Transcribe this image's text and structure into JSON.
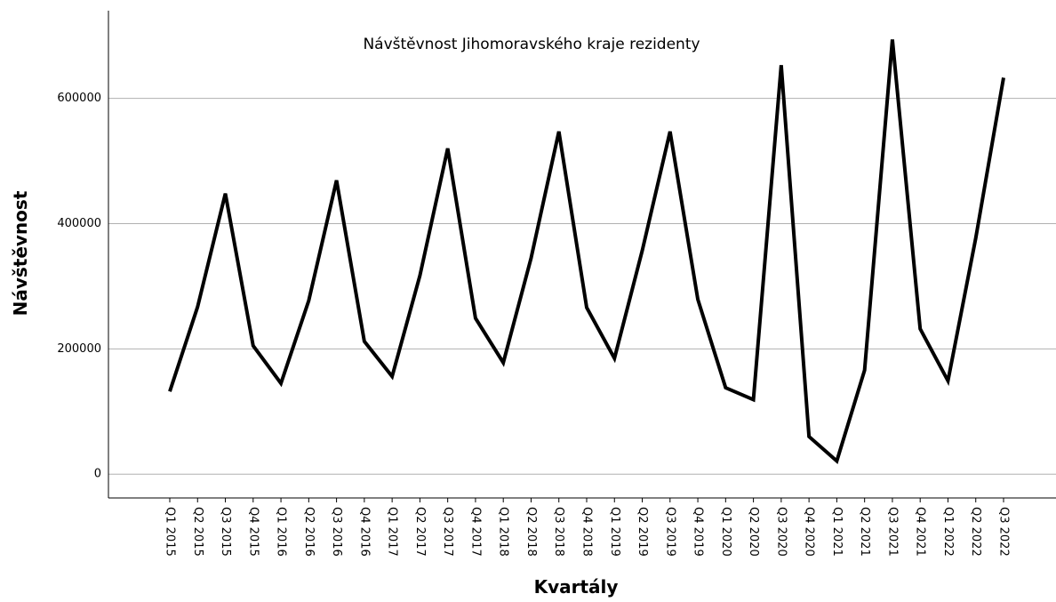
{
  "chart_data": {
    "type": "line",
    "title": "Návštěvnost Jihomoravského kraje rezidenty",
    "xlabel": "Kvartály",
    "ylabel": "Návštěvnost",
    "categories": [
      "Q1 2015",
      "Q2 2015",
      "Q3 2015",
      "Q4 2015",
      "Q1 2016",
      "Q2 2016",
      "Q3 2016",
      "Q4 2016",
      "Q1 2017",
      "Q2 2017",
      "Q3 2017",
      "Q4 2017",
      "Q1 2018",
      "Q2 2018",
      "Q3 2018",
      "Q4 2018",
      "Q1 2019",
      "Q2 2019",
      "Q3 2019",
      "Q4 2019",
      "Q1 2020",
      "Q2 2020",
      "Q3 2020",
      "Q4 2020",
      "Q1 2021",
      "Q2 2021",
      "Q3 2021",
      "Q4 2021",
      "Q1 2022",
      "Q2 2022",
      "Q3 2022"
    ],
    "series": [
      {
        "name": "Návštěvnost",
        "color": "#000000",
        "values": [
          132000,
          267000,
          448000,
          205000,
          145000,
          277000,
          469000,
          212000,
          156000,
          317000,
          520000,
          249000,
          178000,
          345000,
          547000,
          266000,
          185000,
          357000,
          547000,
          279000,
          138000,
          119000,
          653000,
          60000,
          21000,
          166000,
          694000,
          232000,
          149000,
          377000,
          633000
        ]
      }
    ],
    "ylim": [
      -38000,
      740000
    ],
    "yticks": [
      0,
      200000,
      400000,
      600000
    ],
    "grid": true
  }
}
